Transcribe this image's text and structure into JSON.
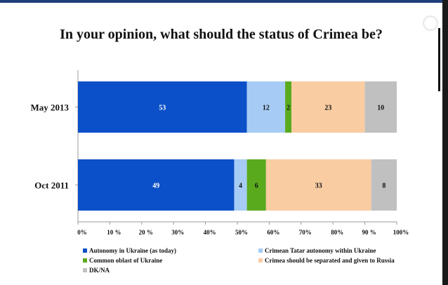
{
  "chart_data": {
    "type": "bar",
    "orientation": "horizontal",
    "stacked": true,
    "title": "In your opinion, what should the status of Crimea be?",
    "categories": [
      "May 2013",
      "Oct 2011"
    ],
    "series": [
      {
        "name": "Autonomy in Ukraine (as today)",
        "color": "#0b50c8",
        "label_color": "#ffffff",
        "values": [
          53,
          49
        ]
      },
      {
        "name": "Crimean Tatar autonomy within Ukraine",
        "color": "#a6ccf5",
        "label_color": "#111111",
        "values": [
          12,
          4
        ]
      },
      {
        "name": "Common oblast of Ukraine",
        "color": "#5aaa1e",
        "label_color": "#111111",
        "values": [
          2,
          6
        ]
      },
      {
        "name": "Crimea should be separated and given to Russia",
        "color": "#f9cca2",
        "label_color": "#111111",
        "values": [
          23,
          33
        ]
      },
      {
        "name": "DK/NA",
        "color": "#c0c0c0",
        "label_color": "#111111",
        "values": [
          10,
          8
        ]
      }
    ],
    "xlim": [
      0,
      100
    ],
    "ticks": [
      "0%",
      "10 %",
      "20 %",
      "30%",
      "40%",
      "50%",
      "60%",
      "70%",
      "80%",
      "90 %",
      "100%"
    ],
    "legend_position": "bottom"
  }
}
